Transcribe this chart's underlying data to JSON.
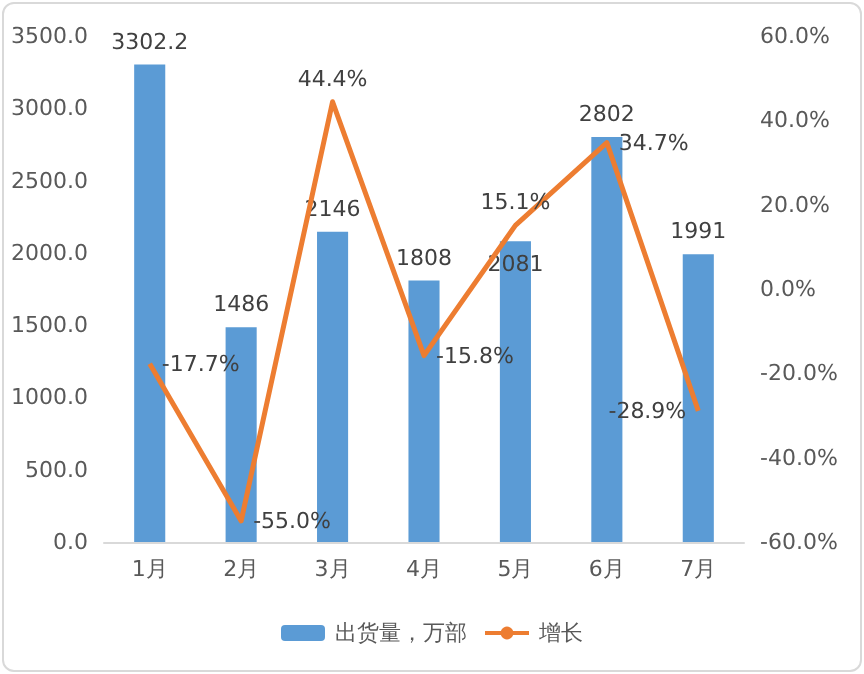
{
  "chart_data": {
    "type": "bar",
    "categories": [
      "1月",
      "2月",
      "3月",
      "4月",
      "5月",
      "6月",
      "7月"
    ],
    "series": [
      {
        "name": "出货量，万部",
        "color": "#5b9bd5",
        "values": [
          3302.2,
          1486,
          2146,
          1808,
          2081,
          2802,
          1991
        ],
        "value_labels": [
          "3302.2",
          "1486",
          "2146",
          "1808",
          "2081",
          "2802",
          "1991"
        ]
      },
      {
        "name": "增长",
        "type": "line",
        "axis": "y2",
        "color": "#ed7d31",
        "values": [
          -17.7,
          -55.0,
          44.4,
          -15.8,
          15.1,
          34.7,
          -28.9
        ],
        "value_labels": [
          "-17.7%",
          "-55.0%",
          "44.4%",
          "-15.8%",
          "15.1%",
          "34.7%",
          "-28.9%"
        ]
      }
    ],
    "ylim": [
      0,
      3500
    ],
    "yticks": [
      {
        "value": 0,
        "label": "0.0"
      },
      {
        "value": 500,
        "label": "500.0"
      },
      {
        "value": 1000,
        "label": "1000.0"
      },
      {
        "value": 1500,
        "label": "1500.0"
      },
      {
        "value": 2000,
        "label": "2000.0"
      },
      {
        "value": 2500,
        "label": "2500.0"
      },
      {
        "value": 3000,
        "label": "3000.0"
      },
      {
        "value": 3500,
        "label": "3500.0"
      }
    ],
    "y2lim": [
      -60,
      60
    ],
    "y2ticks": [
      {
        "value": -60,
        "label": "-60.0%"
      },
      {
        "value": -40,
        "label": "-40.0%"
      },
      {
        "value": -20,
        "label": "-20.0%"
      },
      {
        "value": 0,
        "label": "0.0%"
      },
      {
        "value": 20,
        "label": "20.0%"
      },
      {
        "value": 40,
        "label": "40.0%"
      },
      {
        "value": 60,
        "label": "60.0%"
      }
    ],
    "legend": "bottom",
    "marker": "none",
    "line_style": "solid"
  }
}
